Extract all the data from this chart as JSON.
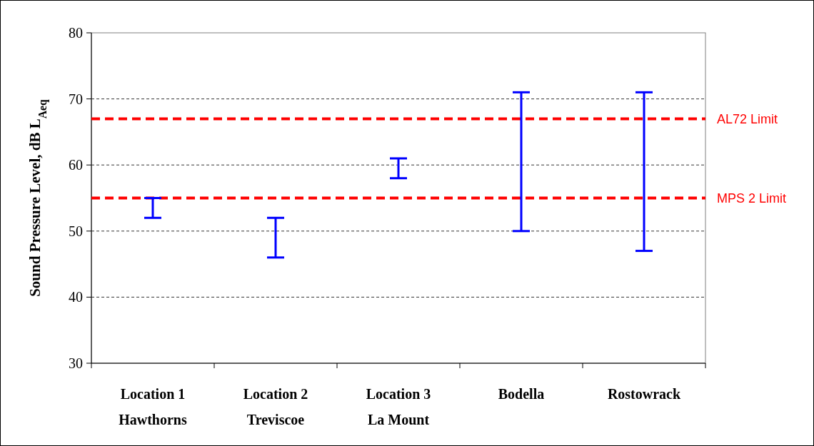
{
  "chart_data": {
    "type": "bar",
    "ylabel": "Sound Pressure Level, dB L$_{Aeq}$",
    "categories": [
      "Location 1\nHawthorns",
      "Location 2\nTreviscoe",
      "Location 3\nLa Mount",
      "Bodella",
      "Rostowrack"
    ],
    "base": [
      52,
      46,
      58,
      50,
      47
    ],
    "values": [
      3,
      6,
      3,
      21,
      24
    ],
    "color": "#0000ff",
    "ylim": [
      30,
      80
    ],
    "yticks": [
      30,
      40,
      50,
      60,
      70,
      80
    ],
    "grid": "y",
    "ref_lines": [
      {
        "axis": "y",
        "value": 67,
        "label": "AL72 Limit",
        "color": "#ff0000",
        "line_style": "dashed"
      },
      {
        "axis": "y",
        "value": 55,
        "label": "MPS 2 Limit",
        "color": "#ff0000",
        "line_style": "dashed"
      }
    ]
  }
}
